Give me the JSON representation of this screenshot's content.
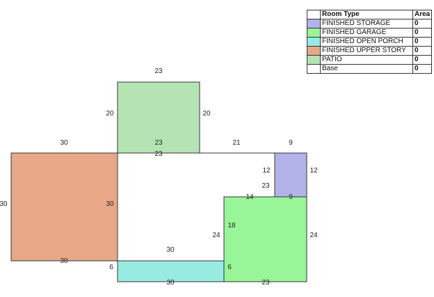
{
  "colors": {
    "storage": "#b3b3ea",
    "garage": "#98f598",
    "porch": "#98ebe0",
    "upper_story": "#e8a888",
    "patio": "#b4e4b4",
    "base": "#ffffff",
    "outline": "#333333"
  },
  "legend": {
    "header_type": "Room Type",
    "header_area": "Area",
    "rows": [
      {
        "label": "FINISHED STORAGE",
        "area": "0",
        "color": "#b3b3ea"
      },
      {
        "label": "FINISHED GARAGE",
        "area": "0",
        "color": "#98f598"
      },
      {
        "label": "FINISHED OPEN PORCH",
        "area": "0",
        "color": "#98ebe0"
      },
      {
        "label": "FINISHED UPPER STORY",
        "area": "0",
        "color": "#e8a888"
      },
      {
        "label": "PATIO",
        "area": "0",
        "color": "#b4e4b4"
      },
      {
        "label": "Base",
        "area": "0",
        "color": "#ffffff"
      }
    ]
  },
  "dimensions": {
    "patio_top": "23",
    "patio_left": "20",
    "patio_right": "20",
    "patio_bottom": "23",
    "base_top_left": "23",
    "upper_top": "30",
    "upper_left": "30",
    "upper_right": "30",
    "upper_bottom": "30",
    "base_top_right": "21",
    "storage_top": "9",
    "storage_left": "12",
    "storage_right": "12",
    "storage_bottom": "9",
    "base_inner_23": "23",
    "base_14": "14",
    "garage_18": "18",
    "base_24": "24",
    "garage_right": "24",
    "base_30_mid": "30",
    "porch_left": "6",
    "porch_right": "6",
    "porch_bottom": "30",
    "garage_bottom": "23"
  }
}
